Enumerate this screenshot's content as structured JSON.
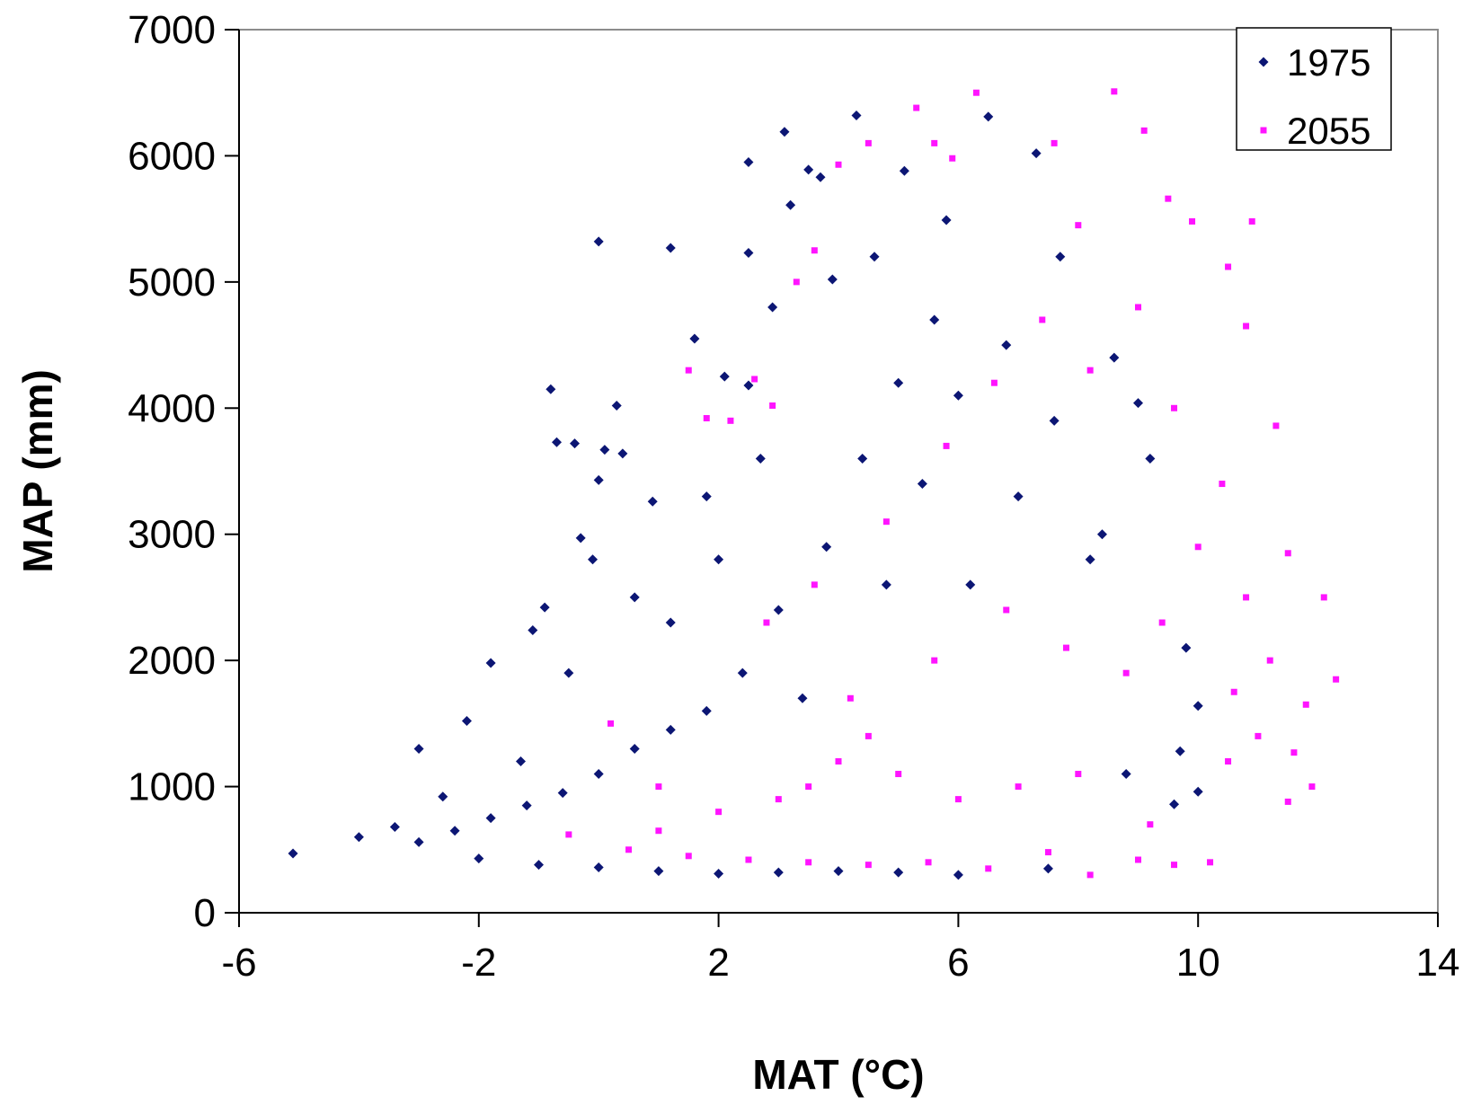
{
  "chart_data": {
    "type": "scatter",
    "title": "",
    "xlabel": "MAT (°C)",
    "ylabel": "MAP (mm)",
    "xlim": [
      -6,
      14
    ],
    "ylim": [
      0,
      7000
    ],
    "x_ticks": [
      "-6",
      "-2",
      "2",
      "6",
      "10",
      "14"
    ],
    "y_ticks": [
      "0",
      "1000",
      "2000",
      "3000",
      "4000",
      "5000",
      "6000",
      "7000"
    ],
    "grid": false,
    "legend_position": "top-right",
    "colors": {
      "1975": "#0c1674",
      "2055": "#ff14ff"
    },
    "series": [
      {
        "name": "1975",
        "marker": "diamond",
        "color": "#0c1674",
        "points": [
          [
            -5.1,
            470
          ],
          [
            -4.0,
            600
          ],
          [
            -3.4,
            680
          ],
          [
            -3.0,
            1300
          ],
          [
            -2.6,
            920
          ],
          [
            -2.2,
            1520
          ],
          [
            -1.8,
            1980
          ],
          [
            -1.3,
            1200
          ],
          [
            -1.1,
            2240
          ],
          [
            -0.9,
            2420
          ],
          [
            -0.8,
            4150
          ],
          [
            -0.7,
            3730
          ],
          [
            -0.4,
            3720
          ],
          [
            -0.3,
            2970
          ],
          [
            -0.1,
            2800
          ],
          [
            0.0,
            3430
          ],
          [
            0.1,
            3670
          ],
          [
            -0.5,
            1900
          ],
          [
            0.0,
            5320
          ],
          [
            0.3,
            4020
          ],
          [
            0.4,
            3640
          ],
          [
            0.6,
            2500
          ],
          [
            0.9,
            3260
          ],
          [
            1.2,
            2300
          ],
          [
            1.2,
            5270
          ],
          [
            1.6,
            4550
          ],
          [
            1.8,
            3300
          ],
          [
            2.0,
            2800
          ],
          [
            2.1,
            4250
          ],
          [
            2.5,
            5950
          ],
          [
            2.5,
            5230
          ],
          [
            2.5,
            4180
          ],
          [
            2.7,
            3600
          ],
          [
            2.9,
            4800
          ],
          [
            3.1,
            6190
          ],
          [
            3.2,
            5610
          ],
          [
            3.5,
            5890
          ],
          [
            3.7,
            5830
          ],
          [
            3.9,
            5020
          ],
          [
            4.3,
            6320
          ],
          [
            4.6,
            5200
          ],
          [
            5.1,
            5880
          ],
          [
            5.8,
            5490
          ],
          [
            6.5,
            6310
          ],
          [
            7.3,
            6020
          ],
          [
            7.7,
            5200
          ],
          [
            8.6,
            4400
          ],
          [
            9.0,
            4040
          ],
          [
            9.2,
            3600
          ],
          [
            9.8,
            2100
          ],
          [
            10.0,
            1640
          ],
          [
            9.7,
            1280
          ],
          [
            10.0,
            960
          ],
          [
            9.6,
            860
          ],
          [
            8.8,
            1100
          ],
          [
            8.2,
            2800
          ],
          [
            7.0,
            3300
          ],
          [
            6.2,
            2600
          ],
          [
            5.6,
            4700
          ],
          [
            5.0,
            4200
          ],
          [
            4.4,
            3600
          ],
          [
            3.8,
            2900
          ],
          [
            3.0,
            2400
          ],
          [
            2.4,
            1900
          ],
          [
            1.8,
            1600
          ],
          [
            1.2,
            1450
          ],
          [
            0.6,
            1300
          ],
          [
            0.0,
            1100
          ],
          [
            -0.6,
            950
          ],
          [
            -1.2,
            850
          ],
          [
            -1.8,
            750
          ],
          [
            -2.4,
            650
          ],
          [
            -3.0,
            560
          ],
          [
            -2.0,
            430
          ],
          [
            -1.0,
            380
          ],
          [
            0.0,
            360
          ],
          [
            1.0,
            330
          ],
          [
            2.0,
            310
          ],
          [
            3.0,
            320
          ],
          [
            4.0,
            330
          ],
          [
            5.0,
            320
          ],
          [
            6.0,
            300
          ],
          [
            7.5,
            350
          ],
          [
            4.8,
            2600
          ],
          [
            6.8,
            4500
          ],
          [
            7.6,
            3900
          ],
          [
            8.4,
            3000
          ],
          [
            5.4,
            3400
          ],
          [
            6.0,
            4100
          ],
          [
            3.4,
            1700
          ]
        ]
      },
      {
        "name": "2055",
        "marker": "square",
        "color": "#ff14ff",
        "points": [
          [
            -0.5,
            620
          ],
          [
            0.2,
            1500
          ],
          [
            1.0,
            1000
          ],
          [
            1.5,
            4300
          ],
          [
            1.8,
            3920
          ],
          [
            2.2,
            3900
          ],
          [
            2.6,
            4230
          ],
          [
            2.9,
            4020
          ],
          [
            3.3,
            5000
          ],
          [
            3.6,
            5250
          ],
          [
            4.0,
            5930
          ],
          [
            4.5,
            6100
          ],
          [
            5.3,
            6380
          ],
          [
            5.6,
            6100
          ],
          [
            5.9,
            5980
          ],
          [
            6.3,
            6500
          ],
          [
            7.6,
            6100
          ],
          [
            8.0,
            5450
          ],
          [
            8.6,
            6510
          ],
          [
            9.1,
            6200
          ],
          [
            9.5,
            5660
          ],
          [
            9.9,
            5480
          ],
          [
            10.9,
            5480
          ],
          [
            10.5,
            5120
          ],
          [
            10.8,
            4650
          ],
          [
            11.3,
            3860
          ],
          [
            11.5,
            2850
          ],
          [
            12.1,
            2500
          ],
          [
            12.3,
            1850
          ],
          [
            11.8,
            1650
          ],
          [
            11.6,
            1270
          ],
          [
            11.9,
            1000
          ],
          [
            11.5,
            880
          ],
          [
            11.0,
            1400
          ],
          [
            10.6,
            1750
          ],
          [
            10.2,
            400
          ],
          [
            9.6,
            380
          ],
          [
            9.0,
            420
          ],
          [
            8.2,
            300
          ],
          [
            7.5,
            480
          ],
          [
            6.5,
            350
          ],
          [
            5.5,
            400
          ],
          [
            4.5,
            380
          ],
          [
            3.5,
            400
          ],
          [
            2.5,
            420
          ],
          [
            1.5,
            450
          ],
          [
            0.5,
            500
          ],
          [
            1.0,
            650
          ],
          [
            2.0,
            800
          ],
          [
            3.0,
            900
          ],
          [
            3.5,
            1000
          ],
          [
            4.0,
            1200
          ],
          [
            4.5,
            1400
          ],
          [
            5.0,
            1100
          ],
          [
            6.0,
            900
          ],
          [
            7.0,
            1000
          ],
          [
            8.0,
            1100
          ],
          [
            2.8,
            2300
          ],
          [
            3.6,
            2600
          ],
          [
            4.8,
            3100
          ],
          [
            5.8,
            3700
          ],
          [
            6.6,
            4200
          ],
          [
            7.4,
            4700
          ],
          [
            8.2,
            4300
          ],
          [
            9.0,
            4800
          ],
          [
            9.6,
            4000
          ],
          [
            10.4,
            3400
          ],
          [
            10.0,
            2900
          ],
          [
            9.4,
            2300
          ],
          [
            8.8,
            1900
          ],
          [
            7.8,
            2100
          ],
          [
            6.8,
            2400
          ],
          [
            5.6,
            2000
          ],
          [
            4.2,
            1700
          ],
          [
            10.8,
            2500
          ],
          [
            11.2,
            2000
          ],
          [
            10.5,
            1200
          ],
          [
            9.2,
            700
          ]
        ]
      }
    ]
  }
}
